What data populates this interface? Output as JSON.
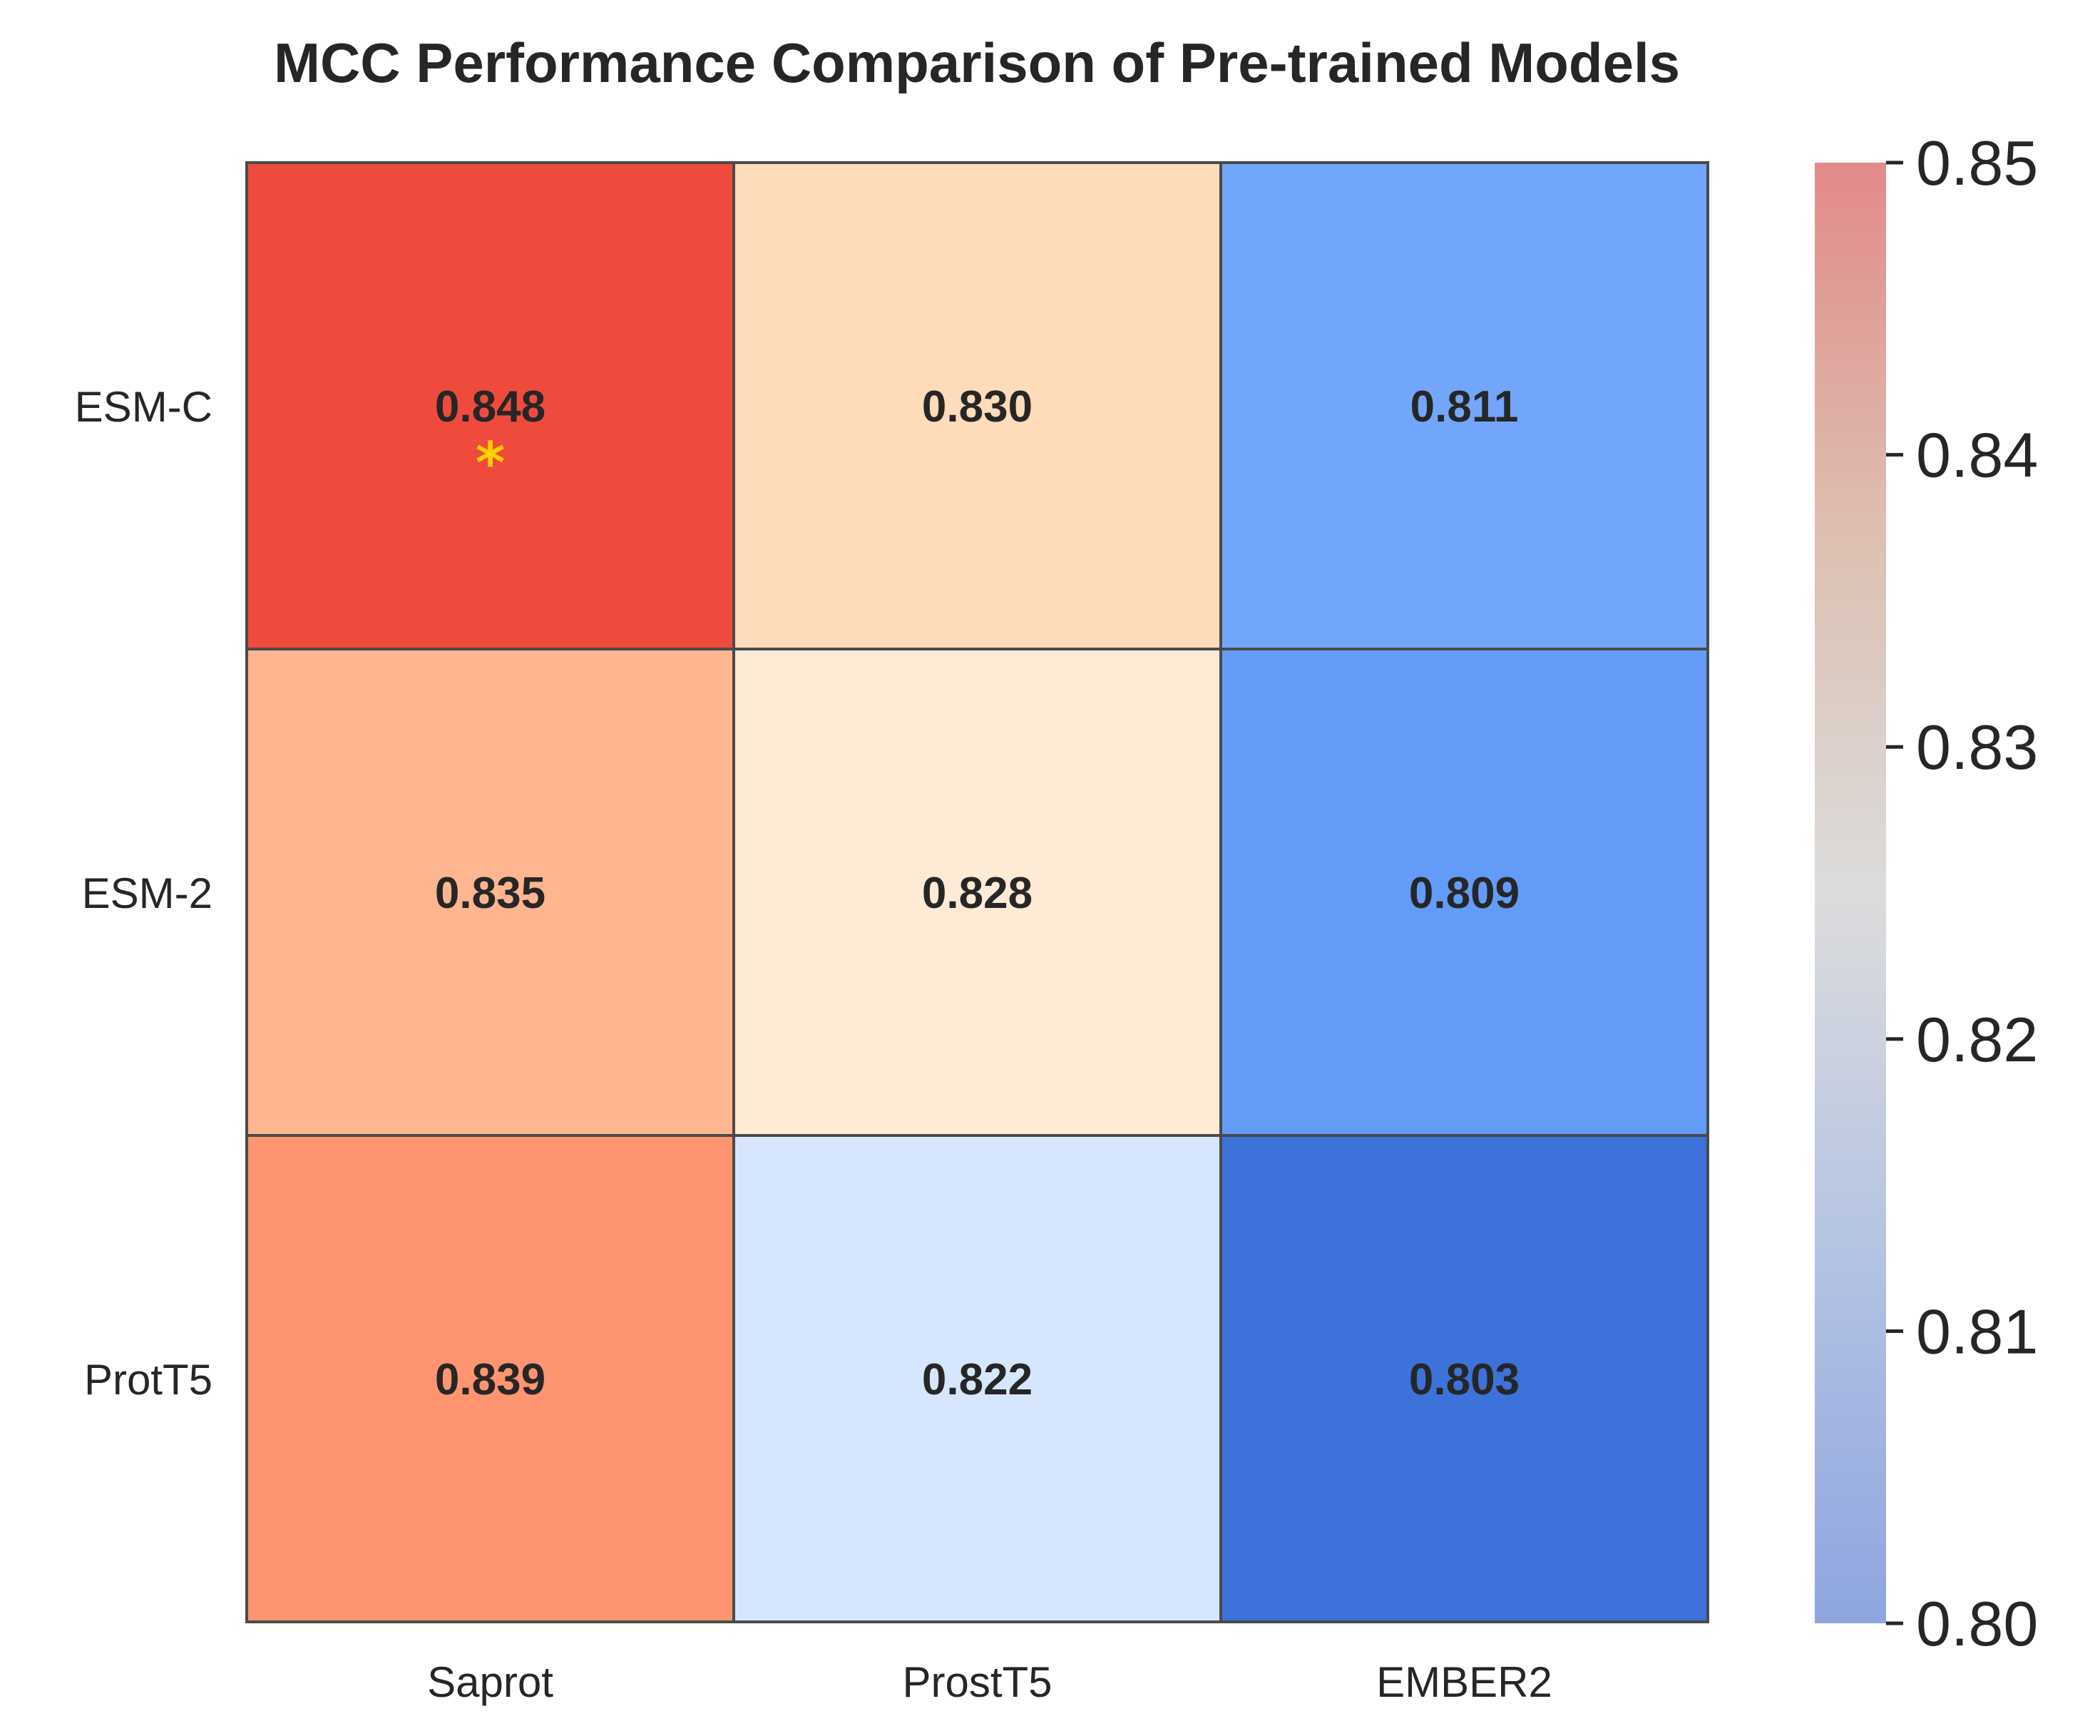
{
  "chart_data": {
    "type": "heatmap",
    "title": "MCC Performance Comparison of Pre-trained Models",
    "rows": [
      "ESM-C",
      "ESM-2",
      "ProtT5"
    ],
    "columns": [
      "Saprot",
      "ProstT5",
      "EMBER2"
    ],
    "values": [
      [
        0.848,
        0.83,
        0.811
      ],
      [
        0.835,
        0.828,
        0.809
      ],
      [
        0.839,
        0.822,
        0.803
      ]
    ],
    "cell_labels": [
      [
        "0.848",
        "0.830",
        "0.811"
      ],
      [
        "0.835",
        "0.828",
        "0.809"
      ],
      [
        "0.839",
        "0.822",
        "0.803"
      ]
    ],
    "best_marker": {
      "row": 0,
      "col": 0,
      "symbol": "*",
      "color": "#FFD000"
    },
    "colorbar": {
      "range": [
        0.8,
        0.85
      ],
      "ticks": [
        "0.80",
        "0.81",
        "0.82",
        "0.83",
        "0.84",
        "0.85"
      ],
      "colormap": "coolwarm"
    },
    "cell_colors": [
      [
        "#EF4B3D",
        "#FEDBB9",
        "#72A6FA"
      ],
      [
        "#FEB590",
        "#FFEAD5",
        "#639CF8"
      ],
      [
        "#FE9570",
        "#D6E7FD",
        "#3C72DA"
      ]
    ],
    "grid_color": "#4a4a4a"
  }
}
